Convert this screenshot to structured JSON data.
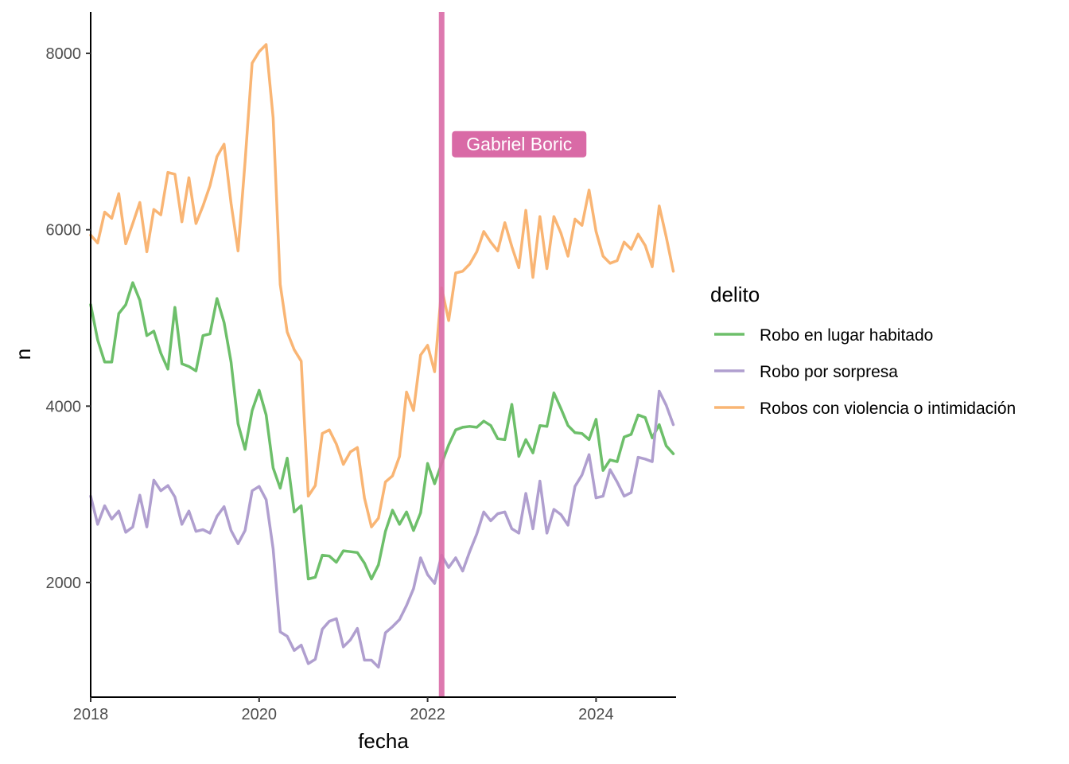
{
  "chart_data": {
    "type": "line",
    "xlabel": "fecha",
    "ylabel": "n",
    "x_ticks": [
      "2018",
      "2020",
      "2022",
      "2024"
    ],
    "y_ticks": [
      "2000",
      "4000",
      "6000",
      "8000"
    ],
    "xlim": [
      2018.0,
      2024.95
    ],
    "ylim": [
      700,
      8470
    ],
    "grid": false,
    "legend": {
      "title": "delito",
      "position": "right"
    },
    "start": "2018-01",
    "frequency": "monthly",
    "series": [
      {
        "name": "Robo en lugar habitado",
        "color": "#6dbf6a",
        "values": [
          5150,
          4750,
          4500,
          4500,
          5050,
          5150,
          5400,
          5200,
          4800,
          4850,
          4600,
          4420,
          5120,
          4480,
          4450,
          4400,
          4800,
          4820,
          5220,
          4950,
          4500,
          3800,
          3510,
          3950,
          4180,
          3900,
          3300,
          3070,
          3410,
          2800,
          2870,
          2040,
          2060,
          2310,
          2300,
          2230,
          2360,
          2350,
          2340,
          2220,
          2040,
          2200,
          2580,
          2820,
          2660,
          2800,
          2590,
          2790,
          3350,
          3120,
          3350,
          3560,
          3730,
          3760,
          3770,
          3760,
          3830,
          3780,
          3630,
          3620,
          4020,
          3430,
          3620,
          3470,
          3780,
          3770,
          4150,
          3970,
          3780,
          3700,
          3690,
          3620,
          3850,
          3270,
          3390,
          3370,
          3650,
          3680,
          3900,
          3870,
          3640,
          3790,
          3550,
          3460
        ]
      },
      {
        "name": "Robo por sorpresa",
        "color": "#b09fcf",
        "values": [
          2980,
          2660,
          2870,
          2720,
          2810,
          2570,
          2630,
          2990,
          2630,
          3160,
          3040,
          3100,
          2970,
          2660,
          2810,
          2580,
          2600,
          2560,
          2750,
          2860,
          2590,
          2440,
          2590,
          3040,
          3090,
          2940,
          2380,
          1440,
          1390,
          1230,
          1290,
          1080,
          1130,
          1470,
          1560,
          1590,
          1270,
          1350,
          1480,
          1120,
          1120,
          1040,
          1430,
          1500,
          1580,
          1740,
          1930,
          2280,
          2090,
          1990,
          2310,
          2170,
          2280,
          2130,
          2350,
          2550,
          2800,
          2700,
          2780,
          2800,
          2610,
          2560,
          3010,
          2610,
          3150,
          2560,
          2830,
          2770,
          2650,
          3090,
          3220,
          3450,
          2960,
          2980,
          3280,
          3140,
          2980,
          3020,
          3420,
          3400,
          3370,
          4170,
          4010,
          3790
        ]
      },
      {
        "name": "Robos con violencia o intimidación",
        "color": "#f9b574",
        "values": [
          5940,
          5850,
          6200,
          6130,
          6410,
          5840,
          6070,
          6310,
          5750,
          6230,
          6170,
          6650,
          6630,
          6090,
          6590,
          6070,
          6270,
          6500,
          6830,
          6970,
          6300,
          5760,
          6770,
          7890,
          8020,
          8100,
          7270,
          5380,
          4840,
          4640,
          4510,
          2980,
          3100,
          3690,
          3730,
          3570,
          3340,
          3480,
          3530,
          2960,
          2630,
          2730,
          3140,
          3210,
          3430,
          4160,
          3950,
          4580,
          4690,
          4390,
          5340,
          4970,
          5510,
          5530,
          5610,
          5750,
          5980,
          5860,
          5760,
          6080,
          5810,
          5570,
          6220,
          5460,
          6150,
          5560,
          6150,
          5960,
          5700,
          6120,
          6050,
          6450,
          5980,
          5700,
          5620,
          5650,
          5860,
          5780,
          5950,
          5820,
          5580,
          6270,
          5920,
          5530
        ]
      }
    ],
    "annotations": [
      {
        "type": "vline",
        "x": "2022-03",
        "color": "#d96aa6",
        "label": "Gabriel Boric",
        "label_y": 6970
      }
    ]
  }
}
